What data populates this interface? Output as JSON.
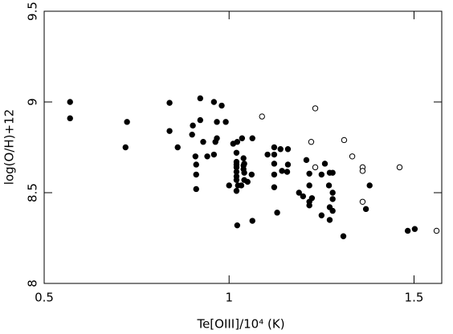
{
  "chart_data": {
    "type": "scatter",
    "x_label": "Te[OIII]/10⁴ (K)",
    "y_label": "log(O/H)+12",
    "xlim": [
      0.5,
      1.575
    ],
    "ylim": [
      8,
      9.5
    ],
    "xticks": [
      0.5,
      1,
      1.5
    ],
    "yticks": [
      8,
      8.5,
      9,
      9.5
    ],
    "series": [
      {
        "color": "#000000",
        "marker": "filled",
        "x": [
          0.57,
          0.57,
          0.724,
          0.72,
          0.839,
          0.839,
          0.861,
          0.9,
          0.902,
          0.909,
          0.911,
          0.911,
          0.911,
          0.922,
          0.922,
          0.93,
          0.941,
          0.959,
          0.967,
          0.963,
          0.967,
          0.959,
          0.98,
          0.991,
          1.0,
          1.011,
          1.022,
          1.02,
          1.02,
          1.02,
          1.02,
          1.02,
          1.02,
          1.02,
          1.02,
          1.024,
          1.022,
          1.035,
          1.039,
          1.041,
          1.039,
          1.039,
          1.041,
          1.041,
          1.033,
          1.05,
          1.061,
          1.063,
          1.063,
          1.104,
          1.122,
          1.122,
          1.122,
          1.122,
          1.122,
          1.139,
          1.143,
          1.13,
          1.159,
          1.159,
          1.157,
          1.189,
          1.2,
          1.209,
          1.217,
          1.217,
          1.217,
          1.217,
          1.224,
          1.25,
          1.25,
          1.259,
          1.27,
          1.272,
          1.272,
          1.272,
          1.28,
          1.28,
          1.28,
          1.28,
          1.309,
          1.37,
          1.38,
          1.483,
          1.502
        ],
        "values": [
          9.0,
          8.91,
          8.89,
          8.75,
          8.995,
          8.84,
          8.75,
          8.82,
          8.87,
          8.7,
          8.655,
          8.6,
          8.52,
          9.02,
          8.9,
          8.78,
          8.7,
          9.0,
          8.89,
          8.78,
          8.8,
          8.71,
          8.98,
          8.89,
          8.54,
          8.77,
          8.78,
          8.72,
          8.67,
          8.655,
          8.64,
          8.615,
          8.59,
          8.57,
          8.51,
          8.54,
          8.32,
          8.8,
          8.69,
          8.66,
          8.65,
          8.63,
          8.61,
          8.57,
          8.54,
          8.56,
          8.6,
          8.8,
          8.345,
          8.71,
          8.75,
          8.71,
          8.66,
          8.6,
          8.53,
          8.74,
          8.62,
          8.39,
          8.74,
          8.655,
          8.615,
          8.5,
          8.48,
          8.68,
          8.605,
          8.54,
          8.45,
          8.43,
          8.47,
          8.6,
          8.375,
          8.66,
          8.54,
          8.61,
          8.42,
          8.35,
          8.5,
          8.465,
          8.4,
          8.61,
          8.26,
          8.41,
          8.54,
          8.29,
          8.3
        ]
      },
      {
        "color": "#000000",
        "marker": "open",
        "x": [
          1.089,
          1.233,
          1.222,
          1.233,
          1.311,
          1.333,
          1.361,
          1.361,
          1.361,
          1.461,
          1.561
        ],
        "values": [
          8.92,
          8.965,
          8.78,
          8.64,
          8.79,
          8.7,
          8.64,
          8.62,
          8.45,
          8.64,
          8.29
        ]
      }
    ]
  }
}
